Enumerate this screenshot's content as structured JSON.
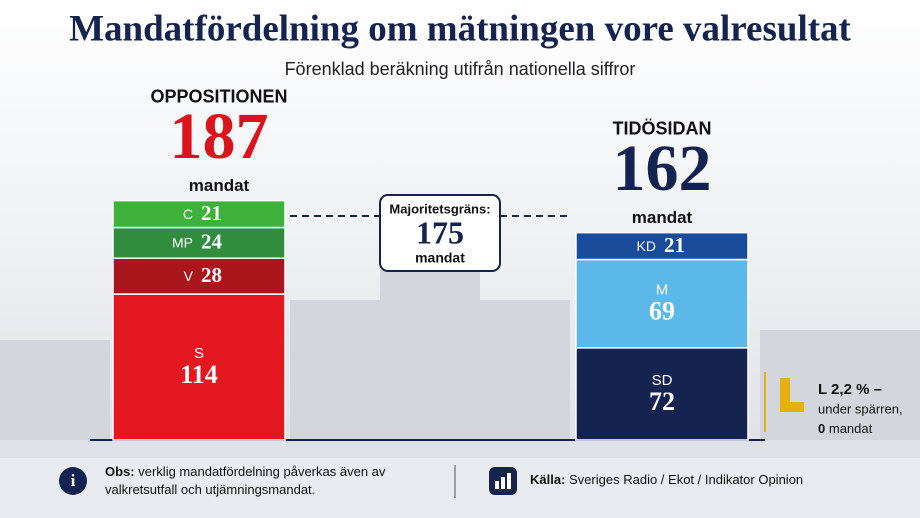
{
  "chart_data": {
    "type": "stacked-bar",
    "title": "Mandatfördelning om mätningen vore valresultat",
    "subtitle": "Förenklad beräkning utifrån nationella siffror",
    "groups": [
      {
        "label": "OPPOSITIONEN",
        "total": 187,
        "unit": "mandat",
        "color": "#d9141c",
        "segments": [
          {
            "name": "S",
            "value": 114,
            "color": "#e3171f"
          },
          {
            "name": "V",
            "value": 28,
            "color": "#a9161c"
          },
          {
            "name": "MP",
            "value": 24,
            "color": "#2f8d3d"
          },
          {
            "name": "C",
            "value": 21,
            "color": "#3db13a"
          }
        ]
      },
      {
        "label": "TIDÖSIDAN",
        "total": 162,
        "unit": "mandat",
        "color": "#14234f",
        "segments": [
          {
            "name": "SD",
            "value": 72,
            "color": "#14234f"
          },
          {
            "name": "M",
            "value": 69,
            "color": "#5bb8e8"
          },
          {
            "name": "KD",
            "value": 21,
            "color": "#1a4b9a"
          }
        ]
      }
    ],
    "majority": {
      "label": "Majoritetsgräns:",
      "value": 175,
      "unit": "mandat"
    },
    "annotation": {
      "lines": [
        "L 2,2 % –",
        "under spärren,"
      ],
      "seats": 0,
      "unit": "mandat",
      "color": "#e8b00f"
    }
  },
  "footer": {
    "note_label": "Obs:",
    "note": "verklig mandatfördelning påverkas även av valkretsutfall och utjämningsmandat.",
    "source_label": "Källa:",
    "source": "Sveriges Radio / Ekot / Indikator Opinion"
  }
}
